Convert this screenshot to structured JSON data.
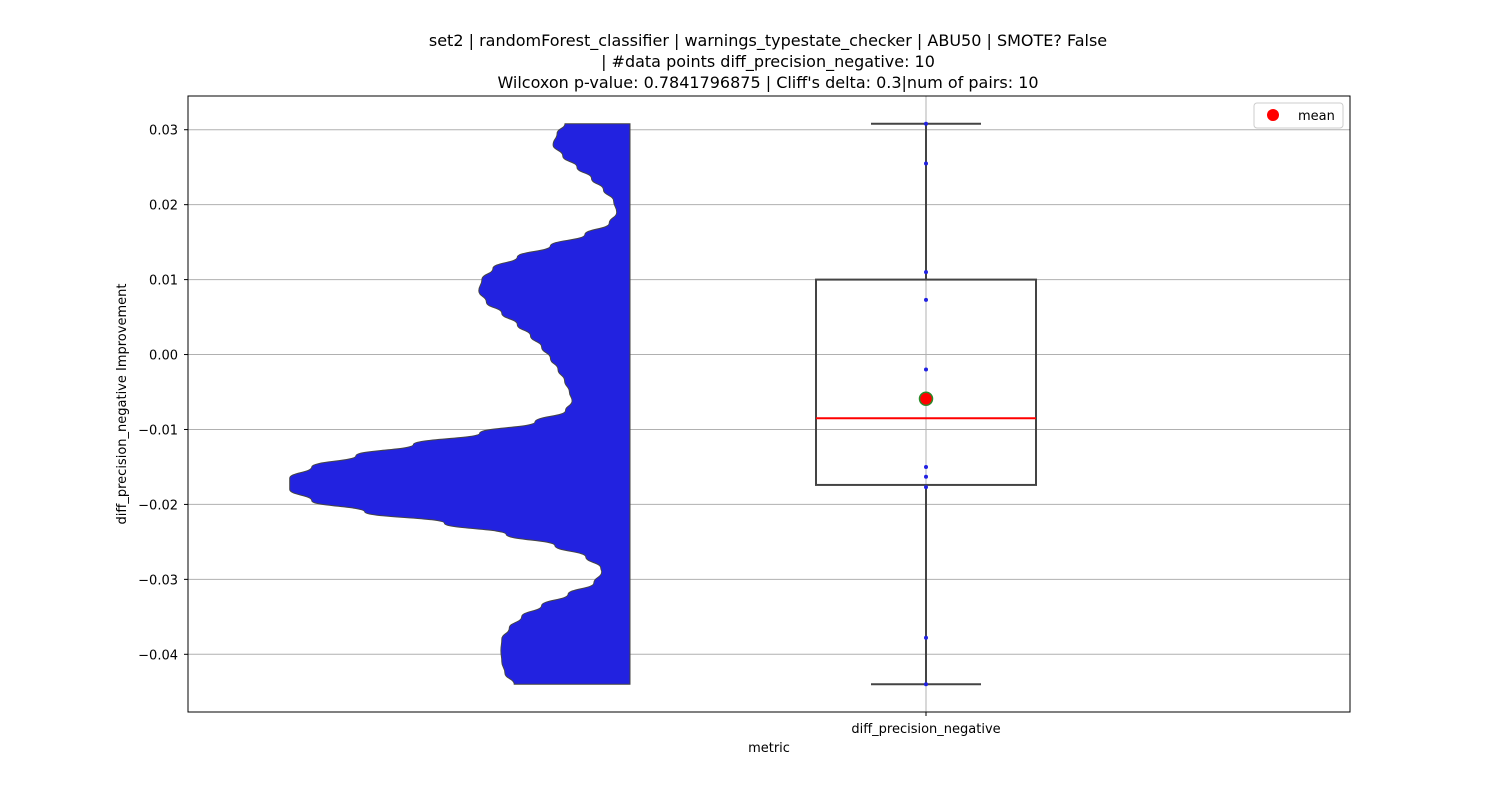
{
  "chart_data": {
    "type": "violin+box",
    "title_lines": [
      "set2 | randomForest_classifier | warnings_typestate_checker | ABU50 | SMOTE? False",
      "| #data points diff_precision_negative: 10",
      "Wilcoxon p-value: 0.7841796875 | Cliff's delta: 0.3|num of pairs: 10"
    ],
    "xlabel": "metric",
    "ylabel": "diff_precision_negative Improvement",
    "categories": [
      "diff_precision_negative"
    ],
    "ylim": [
      -0.0477,
      0.0345
    ],
    "yticks": [
      0.03,
      0.02,
      0.01,
      0.0,
      -0.01,
      -0.02,
      -0.03,
      -0.04
    ],
    "ytick_labels": [
      "0.03",
      "0.02",
      "0.01",
      "0.00",
      "−0.01",
      "−0.02",
      "−0.03",
      "−0.04"
    ],
    "grid": true,
    "legend": {
      "position": "top-right",
      "entries": [
        {
          "label": "mean",
          "marker": "circle",
          "color": "#ff0000"
        }
      ]
    },
    "points": [
      0.0308,
      0.0255,
      0.011,
      0.0073,
      -0.002,
      -0.015,
      -0.0163,
      -0.0177,
      -0.0378,
      -0.044
    ],
    "box": {
      "whisker_low": -0.044,
      "q1": -0.0174,
      "median": -0.0085,
      "q3": 0.01,
      "whisker_high": 0.0308,
      "mean": -0.0059
    },
    "violin_profile": [
      [
        0.0308,
        0.147
      ],
      [
        0.0295,
        0.165
      ],
      [
        0.028,
        0.174
      ],
      [
        0.0265,
        0.152
      ],
      [
        0.025,
        0.12
      ],
      [
        0.0235,
        0.087
      ],
      [
        0.022,
        0.06
      ],
      [
        0.0205,
        0.037
      ],
      [
        0.019,
        0.03
      ],
      [
        0.0175,
        0.047
      ],
      [
        0.016,
        0.102
      ],
      [
        0.0145,
        0.18
      ],
      [
        0.013,
        0.255
      ],
      [
        0.0115,
        0.31
      ],
      [
        0.01,
        0.335
      ],
      [
        0.0085,
        0.342
      ],
      [
        0.007,
        0.325
      ],
      [
        0.0055,
        0.29
      ],
      [
        0.004,
        0.255
      ],
      [
        0.0025,
        0.225
      ],
      [
        0.001,
        0.2
      ],
      [
        -0.0005,
        0.18
      ],
      [
        -0.002,
        0.163
      ],
      [
        -0.0035,
        0.148
      ],
      [
        -0.005,
        0.137
      ],
      [
        -0.0062,
        0.131
      ],
      [
        -0.0075,
        0.146
      ],
      [
        -0.009,
        0.215
      ],
      [
        -0.0105,
        0.34
      ],
      [
        -0.012,
        0.49
      ],
      [
        -0.0135,
        0.62
      ],
      [
        -0.015,
        0.72
      ],
      [
        -0.0165,
        0.77
      ],
      [
        -0.018,
        0.77
      ],
      [
        -0.0195,
        0.72
      ],
      [
        -0.021,
        0.6
      ],
      [
        -0.0225,
        0.42
      ],
      [
        -0.024,
        0.28
      ],
      [
        -0.0255,
        0.17
      ],
      [
        -0.027,
        0.1
      ],
      [
        -0.0285,
        0.066
      ],
      [
        -0.029,
        0.064
      ],
      [
        -0.0305,
        0.082
      ],
      [
        -0.032,
        0.14
      ],
      [
        -0.0335,
        0.2
      ],
      [
        -0.035,
        0.245
      ],
      [
        -0.0365,
        0.273
      ],
      [
        -0.038,
        0.29
      ],
      [
        -0.0395,
        0.292
      ],
      [
        -0.041,
        0.29
      ],
      [
        -0.0425,
        0.283
      ],
      [
        -0.044,
        0.262
      ]
    ],
    "colors": {
      "violin": "#2222e0",
      "median": "#ff0000",
      "mean": "#ff0000",
      "mean_edge": "#2a8a2a",
      "box_edge": "#444444",
      "points": "#2222e0",
      "grid": "#b0b0b0"
    }
  }
}
